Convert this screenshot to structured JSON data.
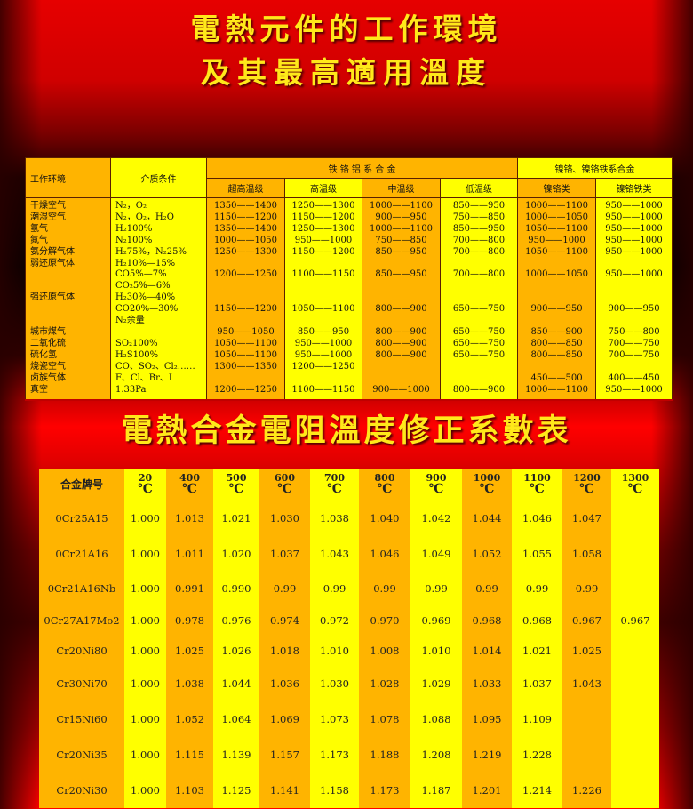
{
  "titles": {
    "top_line1": "電熱元件的工作環境",
    "top_line2": "及其最高適用溫度",
    "bottom": "電熱合金電阻溫度修正系數表"
  },
  "colors": {
    "orange": "#ffb400",
    "yellow": "#ffff00",
    "title": "#ffe81a",
    "background": "#e60000"
  },
  "env_table": {
    "header": {
      "environment": "工作环境",
      "medium": "介质条件",
      "group1": "铁 铬 铝 系 合 金",
      "group2": "镍铬、镍铬铁系合金",
      "sub": [
        "超高温级",
        "高温级",
        "中温级",
        "低温级",
        "镍铬类",
        "镍铬铁类"
      ]
    },
    "rows": [
      [
        "干燥空气",
        "N₂，O₂",
        "1350——1400",
        "1250——1300",
        "1000——1100",
        "850——950",
        "1000——1100",
        "950——1000"
      ],
      [
        "潮湿空气",
        "N₂，O₂，H₂O",
        "1150——1200",
        "1150——1200",
        "900——950",
        "750——850",
        "1000——1050",
        "950——1000"
      ],
      [
        "氢气",
        "H₂100%",
        "1350——1400",
        "1250——1300",
        "1000——1100",
        "850——950",
        "1050——1100",
        "950——1000"
      ],
      [
        "氮气",
        "N₂100%",
        "1000——1050",
        "950——1000",
        "750——850",
        "700——800",
        "950——1000",
        "950——1000"
      ],
      [
        "氨分解气体",
        "H₂75%，N₂25%",
        "1250——1300",
        "1150——1200",
        "850——950",
        "700——800",
        "1050——1100",
        "950——1000"
      ],
      [
        "弱还原气体",
        "H₂10%—15%",
        "",
        "",
        "",
        "",
        "",
        ""
      ],
      [
        "",
        "CO5%—7%",
        "1200——1250",
        "1100——1150",
        "850——950",
        "700——800",
        "1000——1050",
        "950——1000"
      ],
      [
        "",
        "CO₂5%—6%",
        "",
        "",
        "",
        "",
        "",
        ""
      ],
      [
        "强还原气体",
        "H₂30%—40%",
        "",
        "",
        "",
        "",
        "",
        ""
      ],
      [
        "",
        "CO20%—30%",
        "1150——1200",
        "1050——1100",
        "800——900",
        "650——750",
        "900——950",
        "900——950"
      ],
      [
        "",
        "N₂余量",
        "",
        "",
        "",
        "",
        "",
        ""
      ],
      [
        "城市煤气",
        "",
        "950——1050",
        "850——950",
        "800——900",
        "650——750",
        "850——900",
        "750——800"
      ],
      [
        "二氧化硫",
        "SO₂100%",
        "1050——1100",
        "950——1000",
        "800——900",
        "650——750",
        "800——850",
        "700——750"
      ],
      [
        "硫化氢",
        "H₂S100%",
        "1050——1100",
        "950——1000",
        "800——900",
        "650——750",
        "800——850",
        "700——750"
      ],
      [
        "烧瓷空气",
        "CO、SO₂、Cl₂……",
        "1300——1350",
        "1200——1250",
        "",
        "",
        "",
        ""
      ],
      [
        "卤族气体",
        "F、Cl、Br、I",
        "",
        "",
        "",
        "",
        "450——500",
        "400——450"
      ],
      [
        "真空",
        "1.33Pa",
        "1200——1250",
        "1100——1150",
        "900——1000",
        "800——900",
        "1000——1100",
        "950——1000"
      ]
    ]
  },
  "coef_table": {
    "header": {
      "alloy": "合金牌号",
      "unit": "℃",
      "temps": [
        "20",
        "400",
        "500",
        "600",
        "700",
        "800",
        "900",
        "1000",
        "1100",
        "1200",
        "1300"
      ]
    },
    "rows": [
      [
        "0Cr25A15",
        "1.000",
        "1.013",
        "1.021",
        "1.030",
        "1.038",
        "1.040",
        "1.042",
        "1.044",
        "1.046",
        "1.047",
        ""
      ],
      [
        "0Cr21A16",
        "1.000",
        "1.011",
        "1.020",
        "1.037",
        "1.043",
        "1.046",
        "1.049",
        "1.052",
        "1.055",
        "1.058",
        ""
      ],
      [
        "0Cr21A16Nb",
        "1.000",
        "0.991",
        "0.990",
        "0.99",
        "0.99",
        "0.99",
        "0.99",
        "0.99",
        "0.99",
        "0.99",
        ""
      ],
      [
        "0Cr27A17Mo2",
        "1.000",
        "0.978",
        "0.976",
        "0.974",
        "0.972",
        "0.970",
        "0.969",
        "0.968",
        "0.968",
        "0.967",
        "0.967"
      ],
      [
        "Cr20Ni80",
        "1.000",
        "1.025",
        "1.026",
        "1.018",
        "1.010",
        "1.008",
        "1.010",
        "1.014",
        "1.021",
        "1.025",
        ""
      ],
      [
        "Cr30Ni70",
        "1.000",
        "1.038",
        "1.044",
        "1.036",
        "1.030",
        "1.028",
        "1.029",
        "1.033",
        "1.037",
        "1.043",
        ""
      ],
      [
        "Cr15Ni60",
        "1.000",
        "1.052",
        "1.064",
        "1.069",
        "1.073",
        "1.078",
        "1.088",
        "1.095",
        "1.109",
        "",
        ""
      ],
      [
        "Cr20Ni35",
        "1.000",
        "1.115",
        "1.139",
        "1.157",
        "1.173",
        "1.188",
        "1.208",
        "1.219",
        "1.228",
        "",
        ""
      ],
      [
        "Cr20Ni30",
        "1.000",
        "1.103",
        "1.125",
        "1.141",
        "1.158",
        "1.173",
        "1.187",
        "1.201",
        "1.214",
        "1.226",
        ""
      ]
    ]
  }
}
